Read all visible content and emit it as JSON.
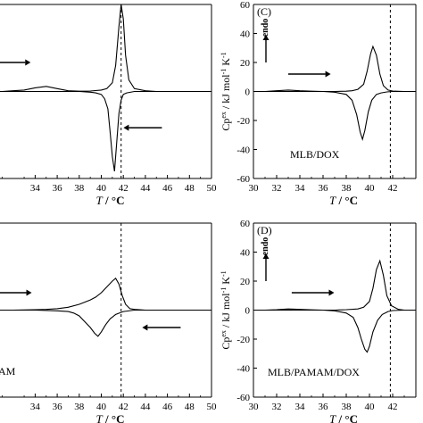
{
  "chart_data": [
    {
      "type": "line",
      "panel_label": "",
      "sample_label": "",
      "xlabel_italic": "T",
      "xlabel_unit": " / °C",
      "ylabel": "",
      "xlim": [
        30,
        50
      ],
      "ylim": [
        -60,
        60
      ],
      "x_ticks": [
        34,
        36,
        38,
        40,
        42,
        44,
        46,
        48,
        50
      ],
      "y_ticks": [],
      "dashed_line_x": 41.8,
      "endo_label": "",
      "heating_arrow": {
        "x": [
          30.3,
          33.1
        ],
        "y": 20,
        "direction": "right"
      },
      "cooling_arrow": {
        "x": [
          45.5,
          42.5
        ],
        "y": -25,
        "direction": "left"
      },
      "series": [
        {
          "values_x": [
            30,
            31,
            32,
            33,
            34,
            35,
            36,
            37,
            38,
            39,
            40,
            40.5,
            41,
            41.3,
            41.6,
            41.8,
            42.0,
            42.2,
            42.5,
            43,
            44,
            45,
            46,
            48,
            50
          ],
          "values_y": [
            0,
            0,
            0.5,
            1,
            2.5,
            3.5,
            2,
            0.5,
            0.2,
            0.3,
            1,
            2,
            6,
            18,
            45,
            60,
            50,
            25,
            8,
            2,
            0.5,
            0,
            0,
            0,
            0
          ]
        },
        {
          "values_x": [
            30,
            32,
            34,
            36,
            38,
            39,
            39.5,
            40,
            40.3,
            40.6,
            40.8,
            41.0,
            41.2,
            41.4,
            41.6,
            41.8,
            42.0,
            42.3,
            43,
            44,
            45,
            46,
            48,
            50
          ],
          "values_y": [
            0,
            0,
            0,
            0,
            0,
            -0.5,
            -1,
            -2,
            -5,
            -12,
            -28,
            -45,
            -55,
            -35,
            -15,
            -6,
            -2,
            -1,
            0,
            0,
            0,
            0,
            0,
            0
          ]
        }
      ]
    },
    {
      "type": "line",
      "panel_label": "(C)",
      "sample_label": "MLB/DOX",
      "xlabel_italic": "T",
      "xlabel_unit": " / °C",
      "ylabel": "Cp^ex / kJ mol^-1 K^-1",
      "xlim": [
        30,
        44
      ],
      "ylim": [
        -60,
        60
      ],
      "x_ticks": [
        30,
        32,
        34,
        36,
        38,
        40,
        42
      ],
      "y_ticks": [
        60,
        40,
        20,
        0,
        -20,
        -40,
        -60
      ],
      "dashed_line_x": 41.8,
      "endo_label": "endo",
      "heating_arrow": {
        "x": [
          33.0,
          36.2
        ],
        "y": 12,
        "direction": "right"
      },
      "cooling_arrow": null,
      "series": [
        {
          "values_x": [
            30,
            31,
            32,
            33,
            34,
            35,
            36,
            37,
            38,
            38.5,
            39,
            39.5,
            39.8,
            40.1,
            40.3,
            40.6,
            40.9,
            41.2,
            41.6,
            42,
            43,
            44
          ],
          "values_y": [
            0,
            0,
            0.5,
            1,
            0.5,
            0.2,
            0,
            0,
            0.2,
            0.5,
            1.5,
            5,
            14,
            26,
            31,
            25,
            12,
            4,
            1,
            0.3,
            0,
            0
          ]
        },
        {
          "values_x": [
            30,
            32,
            34,
            36,
            37,
            38,
            38.5,
            38.9,
            39.2,
            39.4,
            39.6,
            39.9,
            40.2,
            40.6,
            41.0,
            41.5,
            42,
            43,
            44
          ],
          "values_y": [
            0,
            0,
            0,
            0,
            -0.5,
            -2,
            -6,
            -16,
            -28,
            -33,
            -27,
            -14,
            -6,
            -2,
            -1,
            -0.3,
            0,
            0,
            0
          ]
        }
      ]
    },
    {
      "type": "line",
      "panel_label": "",
      "sample_label": "AM",
      "xlabel_italic": "T",
      "xlabel_unit": " / °C",
      "ylabel": "",
      "xlim": [
        30,
        50
      ],
      "ylim": [
        -60,
        60
      ],
      "x_ticks": [
        34,
        36,
        38,
        40,
        42,
        44,
        46,
        48,
        50
      ],
      "y_ticks": [],
      "dashed_line_x": 41.8,
      "endo_label": "",
      "heating_arrow": {
        "x": [
          30.3,
          33.2
        ],
        "y": 12,
        "direction": "right"
      },
      "cooling_arrow": {
        "x": [
          47.2,
          44.2
        ],
        "y": -12,
        "direction": "left"
      },
      "series": [
        {
          "values_x": [
            30,
            32,
            34,
            35,
            36,
            37,
            38,
            39,
            39.5,
            40,
            40.5,
            41,
            41.3,
            41.6,
            41.9,
            42.2,
            42.6,
            43,
            44,
            46,
            50
          ],
          "values_y": [
            0,
            0,
            0.3,
            0.5,
            1,
            2,
            4,
            7,
            9,
            12,
            16,
            20,
            22,
            18,
            10,
            4,
            1,
            0.5,
            0,
            0,
            0
          ]
        },
        {
          "values_x": [
            30,
            32,
            34,
            36,
            37,
            37.5,
            38,
            38.5,
            39,
            39.4,
            39.7,
            40,
            40.4,
            40.8,
            41.3,
            42,
            43,
            44,
            46,
            50
          ],
          "values_y": [
            0,
            0,
            0,
            -0.5,
            -1,
            -2,
            -4,
            -8,
            -12,
            -16,
            -18,
            -15,
            -10,
            -6,
            -3,
            -1,
            0,
            0,
            0,
            0
          ]
        }
      ]
    },
    {
      "type": "line",
      "panel_label": "(D)",
      "sample_label": "MLB/PAMAM/DOX",
      "xlabel_italic": "T",
      "xlabel_unit": " / °C",
      "ylabel": "Cp^ex / kJ mol^-1 K^-1",
      "xlim": [
        30,
        44
      ],
      "ylim": [
        -60,
        60
      ],
      "x_ticks": [
        30,
        32,
        34,
        36,
        38,
        40,
        42
      ],
      "y_ticks": [
        60,
        40,
        20,
        0,
        -20,
        -40,
        -60
      ],
      "dashed_line_x": 41.8,
      "endo_label": "endo",
      "heating_arrow": {
        "x": [
          33.3,
          36.5
        ],
        "y": 12,
        "direction": "right"
      },
      "cooling_arrow": null,
      "series": [
        {
          "values_x": [
            30,
            31,
            32,
            33,
            34,
            35,
            36,
            37,
            38,
            39,
            39.5,
            40,
            40.3,
            40.6,
            40.9,
            41.2,
            41.5,
            41.9,
            42.5,
            43,
            44
          ],
          "values_y": [
            0,
            0,
            0.3,
            0.8,
            0.5,
            0.2,
            0,
            0,
            0.3,
            0.8,
            2,
            6,
            15,
            28,
            34,
            24,
            10,
            3,
            0.5,
            0,
            0
          ]
        },
        {
          "values_x": [
            30,
            32,
            34,
            36,
            37,
            38,
            38.6,
            39.0,
            39.3,
            39.6,
            39.8,
            40.0,
            40.3,
            40.7,
            41.1,
            41.6,
            42,
            43,
            44
          ],
          "values_y": [
            0,
            0,
            0,
            0,
            -0.5,
            -2,
            -5,
            -12,
            -20,
            -27,
            -29,
            -25,
            -15,
            -7,
            -3,
            -1,
            -0.3,
            0,
            0
          ]
        }
      ]
    }
  ]
}
